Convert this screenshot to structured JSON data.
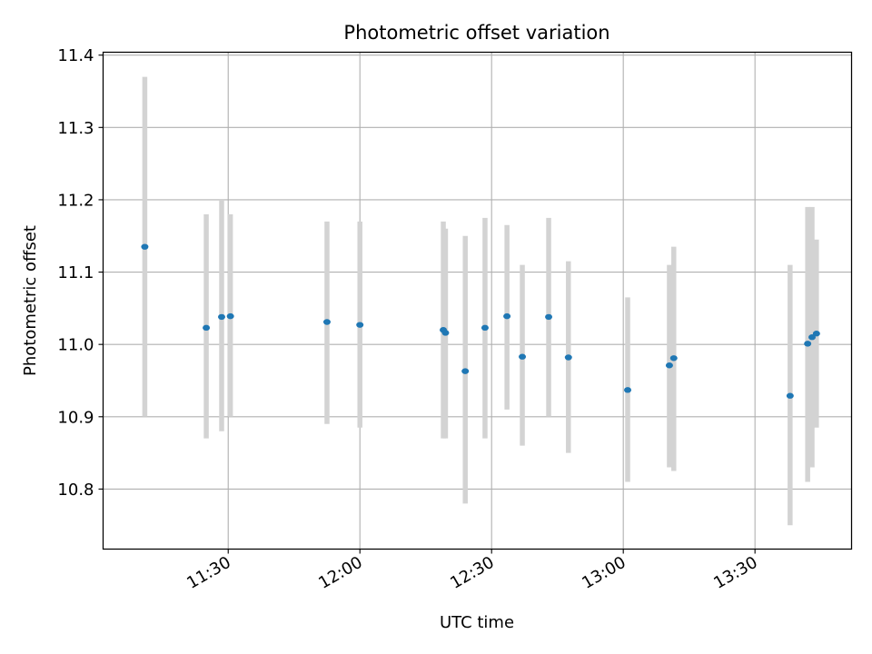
{
  "chart_data": {
    "type": "scatter",
    "title": "Photometric offset variation",
    "xlabel": "UTC time",
    "ylabel": "Photometric offset",
    "xlim": [
      "11:01:30",
      "13:52:00"
    ],
    "ylim": [
      10.717,
      11.404
    ],
    "xticks": [
      "11:30",
      "12:00",
      "12:30",
      "13:00",
      "13:30"
    ],
    "yticks": [
      "10.8",
      "10.9",
      "11.0",
      "11.1",
      "11.2",
      "11.3",
      "11.4"
    ],
    "grid": true,
    "legend": "none",
    "point_color": "#1f77b4",
    "errorbar_color": "#d3d3d3",
    "points": [
      {
        "t": "11:11:00",
        "y": 11.135,
        "lo": 10.9,
        "hi": 11.37
      },
      {
        "t": "11:25:00",
        "y": 11.023,
        "lo": 10.87,
        "hi": 11.18
      },
      {
        "t": "11:28:30",
        "y": 11.038,
        "lo": 10.88,
        "hi": 11.2
      },
      {
        "t": "11:30:30",
        "y": 11.039,
        "lo": 10.9,
        "hi": 11.18
      },
      {
        "t": "11:52:30",
        "y": 11.031,
        "lo": 10.89,
        "hi": 11.17
      },
      {
        "t": "12:00:00",
        "y": 11.027,
        "lo": 10.885,
        "hi": 11.17
      },
      {
        "t": "12:19:00",
        "y": 11.02,
        "lo": 10.87,
        "hi": 11.17
      },
      {
        "t": "12:19:30",
        "y": 11.016,
        "lo": 10.87,
        "hi": 11.16
      },
      {
        "t": "12:24:00",
        "y": 10.963,
        "lo": 10.78,
        "hi": 11.15
      },
      {
        "t": "12:28:30",
        "y": 11.023,
        "lo": 10.87,
        "hi": 11.175
      },
      {
        "t": "12:33:30",
        "y": 11.039,
        "lo": 10.91,
        "hi": 11.165
      },
      {
        "t": "12:37:00",
        "y": 10.983,
        "lo": 10.86,
        "hi": 11.11
      },
      {
        "t": "12:43:00",
        "y": 11.038,
        "lo": 10.9,
        "hi": 11.175
      },
      {
        "t": "12:47:30",
        "y": 10.982,
        "lo": 10.85,
        "hi": 11.115
      },
      {
        "t": "13:01:00",
        "y": 10.937,
        "lo": 10.81,
        "hi": 11.065
      },
      {
        "t": "13:10:30",
        "y": 10.971,
        "lo": 10.83,
        "hi": 11.11
      },
      {
        "t": "13:11:30",
        "y": 10.981,
        "lo": 10.825,
        "hi": 11.135
      },
      {
        "t": "13:38:00",
        "y": 10.929,
        "lo": 10.75,
        "hi": 11.11
      },
      {
        "t": "13:42:00",
        "y": 11.001,
        "lo": 10.81,
        "hi": 11.19
      },
      {
        "t": "13:43:00",
        "y": 11.01,
        "lo": 10.83,
        "hi": 11.19
      },
      {
        "t": "13:44:00",
        "y": 11.015,
        "lo": 10.885,
        "hi": 11.145
      }
    ]
  }
}
